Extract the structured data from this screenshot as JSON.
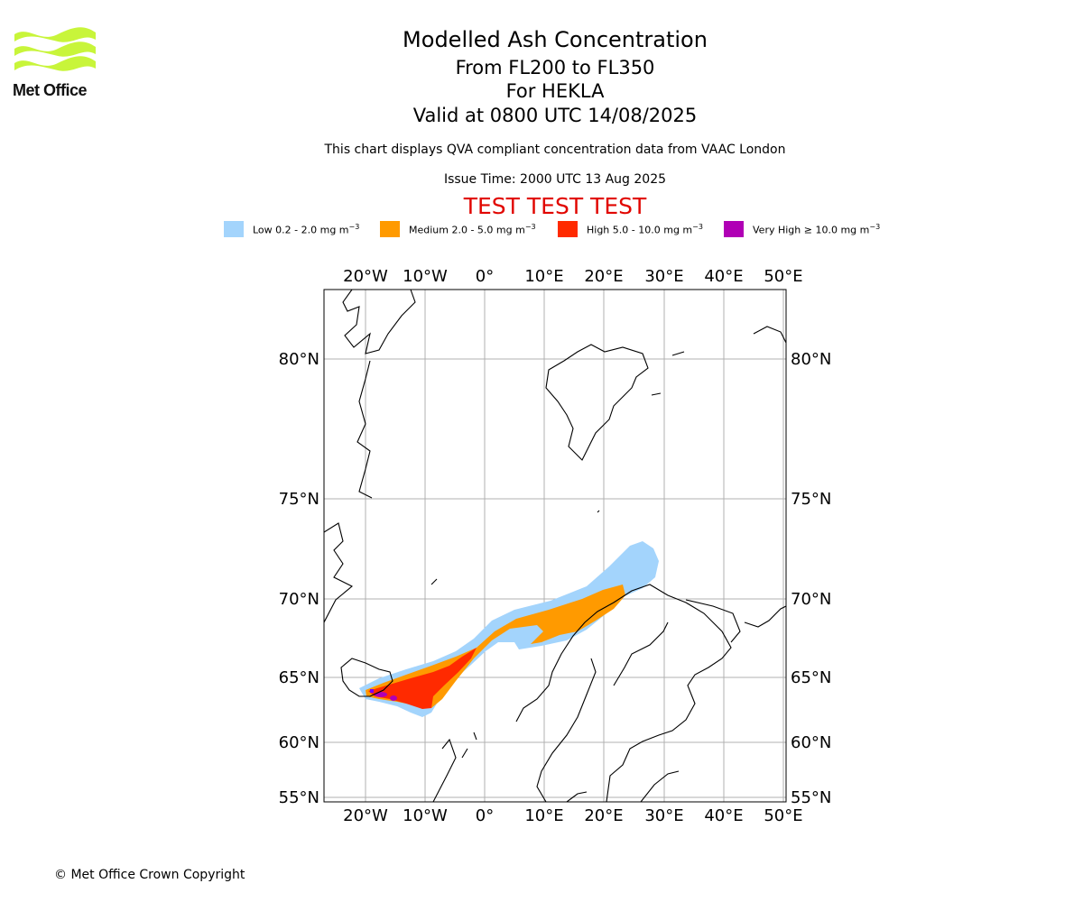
{
  "logo": {
    "text": "Met Office",
    "color": "#c8f53a"
  },
  "header": {
    "title": "Modelled Ash Concentration",
    "levels": "From FL200 to FL350",
    "volcano": "For HEKLA",
    "valid": "Valid at 0800 UTC 14/08/2025",
    "note": "This chart displays QVA compliant concentration data from VAAC London",
    "issue": "Issue Time: 2000 UTC 13 Aug 2025",
    "banner": "TEST TEST TEST",
    "banner_color": "#e10600"
  },
  "legend": [
    {
      "label": "Low 0.2 - 2.0 mg m",
      "color": "#a3d4fc"
    },
    {
      "label": "Medium 2.0 - 5.0 mg m",
      "color": "#ff9a00"
    },
    {
      "label": "High 5.0 - 10.0 mg m",
      "color": "#ff2a00"
    },
    {
      "label": "Very High ≥ 10.0 mg m",
      "color": "#b000b5"
    }
  ],
  "legend_unit_exp": "−3",
  "map": {
    "lon_ticks": [
      "20°W",
      "10°W",
      "0°",
      "10°E",
      "20°E",
      "30°E",
      "40°E",
      "50°E"
    ],
    "lat_ticks": [
      "80°N",
      "75°N",
      "70°N",
      "65°N",
      "60°N",
      "55°N"
    ],
    "projection": "polar stereographic",
    "gridlines": true,
    "coastline_color": "#000000",
    "grid_color": "#b0b0b0"
  },
  "footer": {
    "copyright": "© Met Office Crown Copyright"
  }
}
